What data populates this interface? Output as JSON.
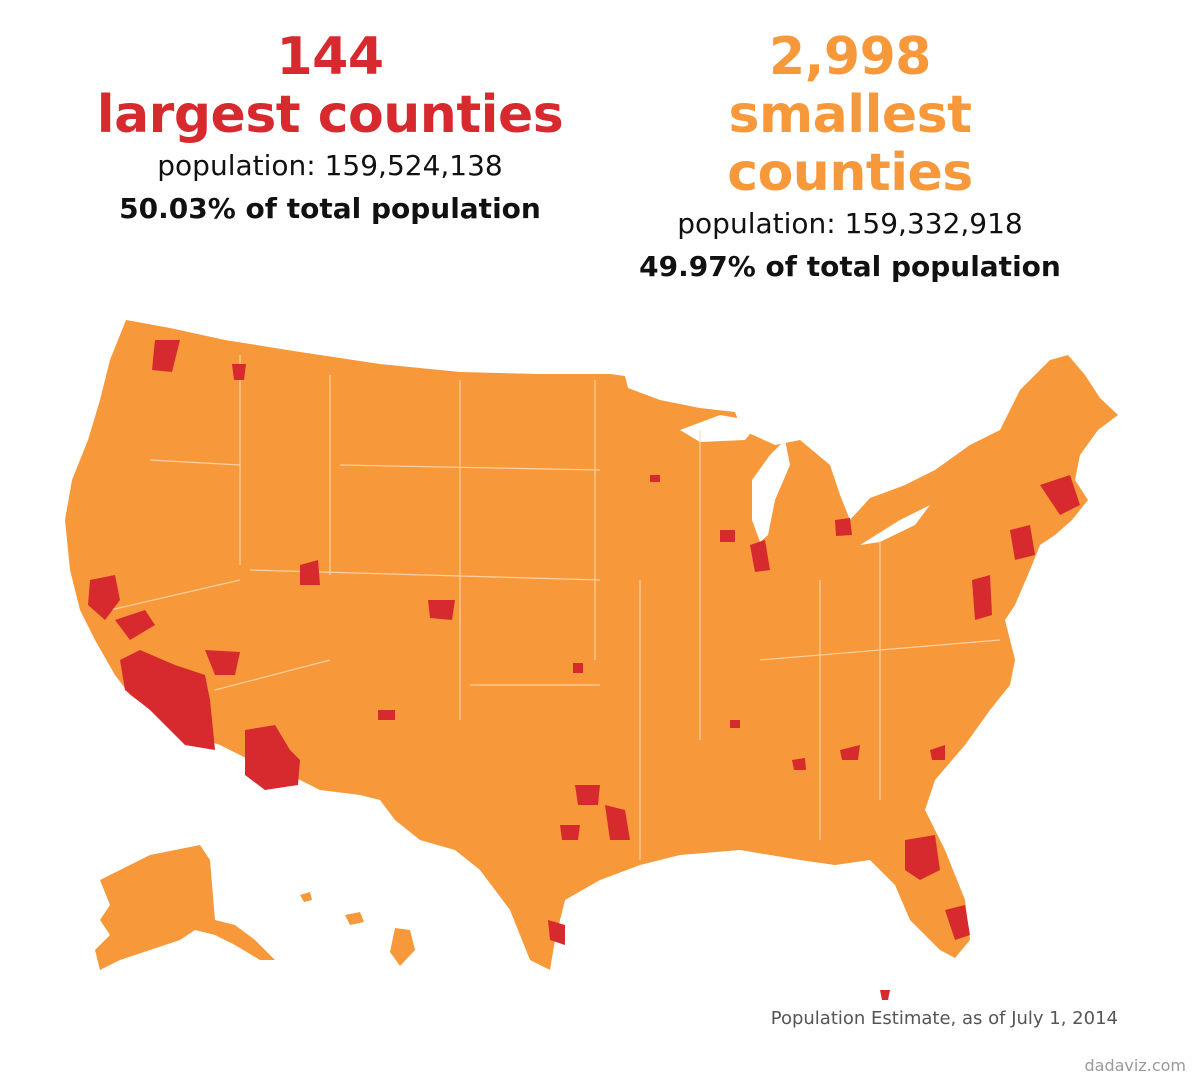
{
  "largest": {
    "count": "144",
    "label": "largest counties",
    "population_text": "population: 159,524,138",
    "share_text": "50.03% of total population",
    "color": "#d72a2e"
  },
  "smallest": {
    "count": "2,998",
    "label": "smallest counties",
    "population_text": "population: 159,332,918",
    "share_text": "49.97% of total population",
    "color": "#f7983a"
  },
  "map": {
    "subject": "United States counties by population group",
    "footnote": "Population Estimate, as of July 1, 2014",
    "credit": "dadaviz.com"
  }
}
